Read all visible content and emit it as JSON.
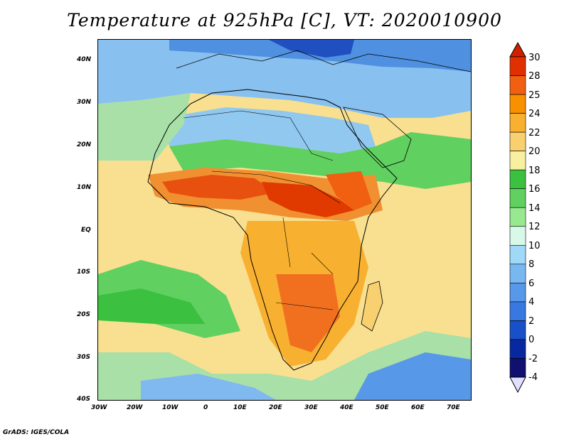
{
  "title": "Temperature at 925hPa [C], VT: 2020010900",
  "credit": "GrADS: IGES/COLA",
  "map": {
    "lon_range": [
      -30,
      75
    ],
    "lat_range": [
      -40,
      45
    ],
    "lon_ticks": [
      "30W",
      "20W",
      "10W",
      "0",
      "10E",
      "20E",
      "30E",
      "40E",
      "50E",
      "60E",
      "70E"
    ],
    "lat_ticks": [
      "40N",
      "30N",
      "20N",
      "10N",
      "EQ",
      "10S",
      "20S",
      "30S",
      "40S"
    ]
  },
  "colorbar": {
    "labels": [
      "30",
      "28",
      "25",
      "24",
      "22",
      "20",
      "18",
      "16",
      "14",
      "12",
      "10",
      "8",
      "6",
      "4",
      "2",
      "0",
      "-2",
      "-4"
    ],
    "colors": [
      "#e03000",
      "#f06010",
      "#f89000",
      "#f8b030",
      "#f8d070",
      "#f8f0a0",
      "#3cc040",
      "#60d060",
      "#98e890",
      "#d8f8e8",
      "#a0d8f8",
      "#78b8f0",
      "#5898e8",
      "#3878e0",
      "#1850c8",
      "#0828a0",
      "#101070",
      "#e0e0ff"
    ],
    "top_arrow": "#d02000",
    "bottom_arrow": "#e0e0ff"
  }
}
